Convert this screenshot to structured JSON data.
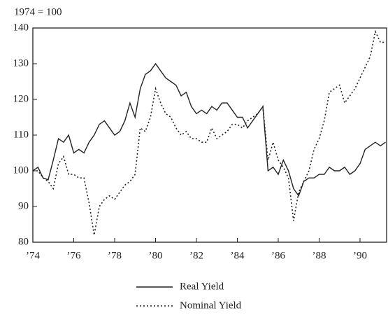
{
  "chart_data": {
    "type": "line",
    "subtitle": "1974 = 100",
    "x": [
      1974,
      1974.25,
      1974.5,
      1974.75,
      1975,
      1975.25,
      1975.5,
      1975.75,
      1976,
      1976.25,
      1976.5,
      1976.75,
      1977,
      1977.25,
      1977.5,
      1977.75,
      1978,
      1978.25,
      1978.5,
      1978.75,
      1979,
      1979.25,
      1979.5,
      1979.75,
      1980,
      1980.25,
      1980.5,
      1980.75,
      1981,
      1981.25,
      1981.5,
      1981.75,
      1982,
      1982.25,
      1982.5,
      1982.75,
      1983,
      1983.25,
      1983.5,
      1983.75,
      1984,
      1984.25,
      1984.5,
      1984.75,
      1985,
      1985.25,
      1985.5,
      1985.75,
      1986,
      1986.25,
      1986.5,
      1986.75,
      1987,
      1987.25,
      1987.5,
      1987.75,
      1988,
      1988.25,
      1988.5,
      1988.75,
      1989,
      1989.25,
      1989.5,
      1989.75,
      1990,
      1990.25,
      1990.5,
      1990.75,
      1991,
      1991.25
    ],
    "series": [
      {
        "name": "Real Yield",
        "color": "#222222",
        "style": "solid",
        "values": [
          100,
          101,
          98,
          97.5,
          103,
          109,
          108,
          110,
          105,
          106,
          105,
          108,
          110,
          113,
          114,
          112,
          110,
          111,
          114,
          119,
          115,
          123,
          127,
          128,
          130,
          128,
          126,
          125,
          124,
          121,
          122,
          118,
          116,
          117,
          116,
          118,
          117,
          119,
          119,
          117,
          115,
          115,
          112,
          114,
          116,
          118,
          100,
          101,
          99,
          103,
          100,
          95,
          93,
          97,
          98,
          98,
          99,
          99,
          101,
          100,
          100,
          101,
          99,
          100,
          102,
          106,
          107,
          108,
          107,
          108
        ]
      },
      {
        "name": "Nominal Yield",
        "color": "#222222",
        "style": "dotted",
        "values": [
          100,
          100,
          98,
          97,
          95,
          102,
          104,
          99,
          99,
          98,
          98,
          91,
          82,
          90,
          92,
          93,
          92,
          94,
          96,
          97,
          99,
          112,
          111,
          115,
          123,
          119,
          116,
          115,
          112,
          110,
          111,
          109,
          109,
          108,
          108,
          112,
          109,
          110,
          111,
          113,
          113,
          112,
          114,
          115,
          116,
          118,
          103,
          108,
          103,
          101,
          98,
          86,
          94,
          97,
          100,
          106,
          109,
          114,
          122,
          123,
          124,
          119,
          121,
          123,
          126,
          129,
          132,
          139,
          136,
          136
        ]
      }
    ],
    "xlim": [
      1974,
      1991.3
    ],
    "xticks": [
      {
        "value": 1974,
        "label": "’74"
      },
      {
        "value": 1976,
        "label": "’76"
      },
      {
        "value": 1978,
        "label": "’78"
      },
      {
        "value": 1980,
        "label": "’80"
      },
      {
        "value": 1982,
        "label": "’82"
      },
      {
        "value": 1984,
        "label": "’84"
      },
      {
        "value": 1986,
        "label": "’86"
      },
      {
        "value": 1988,
        "label": "’88"
      },
      {
        "value": 1990,
        "label": "’90"
      }
    ],
    "ylim": [
      80,
      140
    ],
    "yticks": [
      80,
      90,
      100,
      110,
      120,
      130,
      140
    ],
    "grid": false
  }
}
